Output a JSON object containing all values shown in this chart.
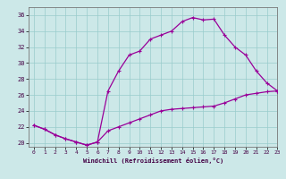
{
  "xlabel": "Windchill (Refroidissement éolien,°C)",
  "background_color": "#cce8e8",
  "line_color": "#990099",
  "grid_color": "#99cccc",
  "x_upper": [
    0,
    1,
    2,
    3,
    4,
    5,
    6,
    7,
    8,
    9,
    10,
    11,
    12,
    13,
    14,
    15,
    16,
    17,
    18,
    19,
    20,
    21,
    22,
    23
  ],
  "y_upper": [
    22.2,
    21.7,
    21.0,
    20.5,
    20.1,
    19.7,
    20.1,
    26.5,
    29.0,
    31.0,
    31.5,
    33.0,
    33.5,
    34.0,
    35.2,
    35.7,
    35.4,
    35.5,
    33.5,
    32.0,
    31.0,
    29.0,
    27.5,
    26.5
  ],
  "x_lower": [
    0,
    1,
    2,
    3,
    4,
    5,
    6,
    7,
    8,
    9,
    10,
    11,
    12,
    13,
    14,
    15,
    16,
    17,
    18,
    19,
    20,
    21,
    22,
    23
  ],
  "y_lower": [
    22.2,
    21.7,
    21.0,
    20.5,
    20.1,
    19.7,
    20.1,
    21.5,
    22.0,
    22.5,
    23.0,
    23.5,
    24.0,
    24.2,
    24.3,
    24.4,
    24.5,
    24.6,
    25.0,
    25.5,
    26.0,
    26.2,
    26.4,
    26.5
  ],
  "ylim": [
    19.5,
    37
  ],
  "xlim": [
    -0.5,
    23
  ],
  "yticks": [
    20,
    22,
    24,
    26,
    28,
    30,
    32,
    34,
    36
  ],
  "xticks": [
    0,
    1,
    2,
    3,
    4,
    5,
    6,
    7,
    8,
    9,
    10,
    11,
    12,
    13,
    14,
    15,
    16,
    17,
    18,
    19,
    20,
    21,
    22,
    23
  ]
}
